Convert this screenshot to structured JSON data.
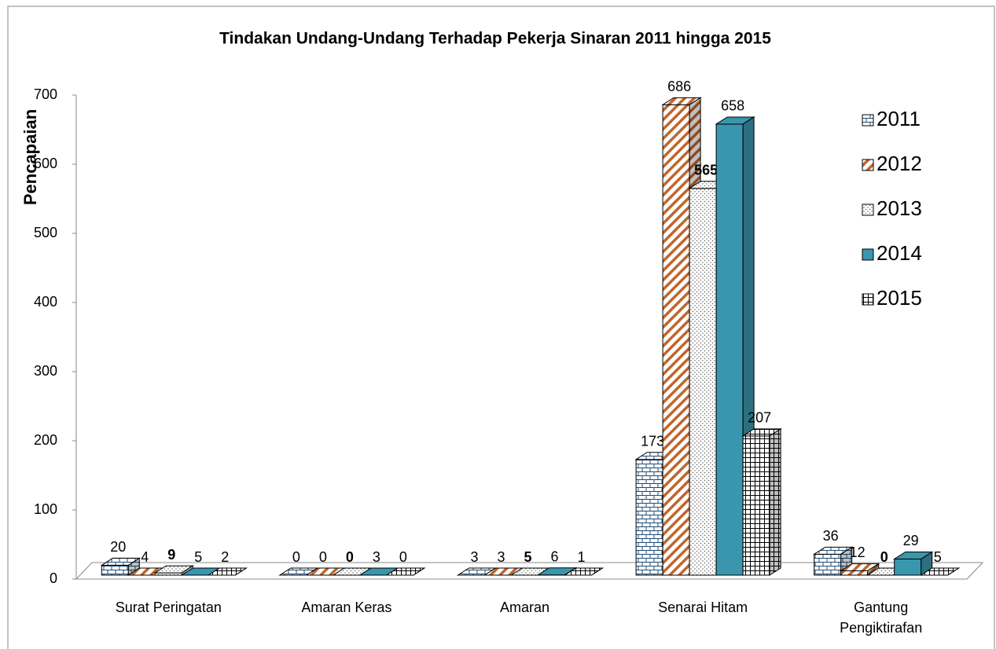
{
  "chart_data": {
    "type": "bar3d",
    "title": "Tindakan Undang-Undang Terhadap Pekerja Sinaran 2011 hingga 2015",
    "ylabel": "Pencapaian",
    "categories": [
      "Surat Peringatan",
      "Amaran Keras",
      "Amaran",
      "Senarai Hitam",
      "Gantung Pengiktirafan"
    ],
    "series": [
      {
        "name": "2011",
        "color": "#1f4e79",
        "pattern": "brick",
        "values": [
          20,
          0,
          3,
          173,
          36
        ]
      },
      {
        "name": "2012",
        "color": "#c0652a",
        "pattern": "stripes",
        "values": [
          4,
          0,
          3,
          686,
          12
        ]
      },
      {
        "name": "2013",
        "color": "#555555",
        "pattern": "dots",
        "values": [
          9,
          0,
          5,
          565,
          0
        ]
      },
      {
        "name": "2014",
        "color": "#3a96ad",
        "pattern": "solid",
        "values": [
          5,
          3,
          6,
          658,
          29
        ]
      },
      {
        "name": "2015",
        "color": "#000000",
        "pattern": "grid",
        "values": [
          2,
          0,
          1,
          207,
          5
        ]
      }
    ],
    "ylim": [
      0,
      700
    ],
    "yticks": [
      0,
      100,
      200,
      300,
      400,
      500,
      600,
      700
    ],
    "legend": "right"
  }
}
